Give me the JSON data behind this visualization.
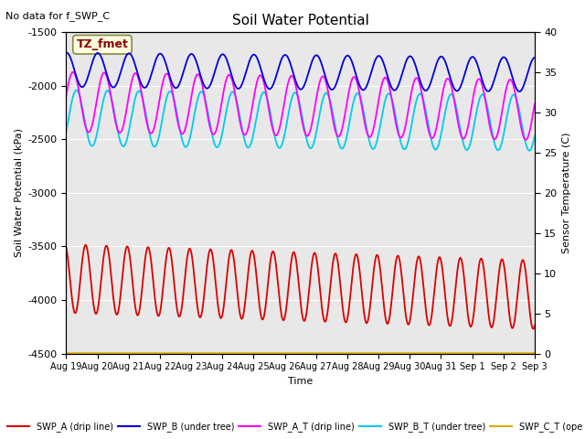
{
  "title": "Soil Water Potential",
  "top_left_text": "No data for f_SWP_C",
  "ylabel_left": "Soil Water Potential (kPa)",
  "ylabel_right": "Sensor Temperature (C)",
  "xlabel": "Time",
  "annotation_box": "TZ_fmet",
  "ylim_left": [
    -4500,
    -1500
  ],
  "ylim_right": [
    0,
    40
  ],
  "n_days": 15,
  "x_tick_labels": [
    "Aug 19",
    "Aug 20",
    "Aug 21",
    "Aug 22",
    "Aug 23",
    "Aug 24",
    "Aug 25",
    "Aug 26",
    "Aug 27",
    "Aug 28",
    "Aug 29",
    "Aug 30",
    "Aug 31",
    "Sep 1",
    "Sep 2",
    "Sep 3"
  ],
  "bg_color": "#e8e8e8",
  "swp_b_color": "#0000dd",
  "swp_b_t_color": "#00ccee",
  "swp_a_t_color": "#ff00ff",
  "swp_a_color": "#dd0000",
  "swp_c_t_color": "#ddaa00",
  "legend_items": [
    {
      "label": "SWP_A (drip line)",
      "color": "#dd0000"
    },
    {
      "label": "SWP_B (under tree)",
      "color": "#0000dd"
    },
    {
      "label": "SWP_A_T (drip line)",
      "color": "#ff00ff"
    },
    {
      "label": "SWP_B_T (under tree)",
      "color": "#00ccee"
    },
    {
      "label": "SWP_C_T (ope",
      "color": "#ddaa00"
    }
  ],
  "swp_b_mean": -1850,
  "swp_b_amp": 160,
  "swp_b_freq": 1.0,
  "swp_at_mean": -2150,
  "swp_at_amp": 280,
  "swp_at_freq": 1.0,
  "swp_bt_mean": -2300,
  "swp_bt_amp": 260,
  "swp_bt_freq": 1.0,
  "swp_a_mean": -3800,
  "swp_a_amp": 320,
  "swp_a_freq": 1.5,
  "swp_ct_val": -4500
}
